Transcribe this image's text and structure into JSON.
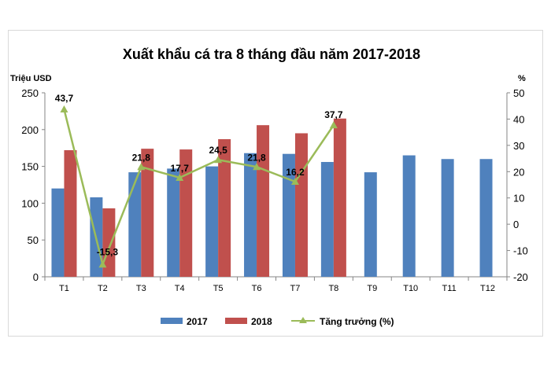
{
  "chart_data": {
    "type": "bar",
    "title": "Xuất khẩu cá tra 8 tháng đầu năm 2017-2018",
    "ylabel": "Triệu USD",
    "y2label": "%",
    "categories": [
      "T1",
      "T2",
      "T3",
      "T4",
      "T5",
      "T6",
      "T7",
      "T8",
      "T9",
      "T10",
      "T11",
      "T12"
    ],
    "ylim": [
      0,
      250
    ],
    "yticks": [
      0,
      50,
      100,
      150,
      200,
      250
    ],
    "y2lim": [
      -20,
      50
    ],
    "y2ticks": [
      -20,
      -10,
      0,
      10,
      20,
      30,
      40,
      50
    ],
    "series": [
      {
        "name": "2017",
        "type": "bar",
        "color": "#4f81bd",
        "values": [
          120,
          108,
          142,
          147,
          150,
          168,
          167,
          156,
          142,
          165,
          160,
          160
        ]
      },
      {
        "name": "2018",
        "type": "bar",
        "color": "#c0504d",
        "values": [
          172,
          93,
          174,
          173,
          187,
          206,
          195,
          215,
          null,
          null,
          null,
          null
        ]
      },
      {
        "name": "Tăng trưởng (%)",
        "type": "line",
        "axis": "right",
        "color": "#9bbb59",
        "values": [
          43.7,
          -15.3,
          21.8,
          17.7,
          24.5,
          21.8,
          16.2,
          37.7,
          null,
          null,
          null,
          null
        ],
        "labels": [
          "43,7",
          "-15,3",
          "21,8",
          "17,7",
          "24,5",
          "21,8",
          "16,2",
          "37,7"
        ]
      }
    ],
    "legend_position": "bottom",
    "grid": false
  },
  "legend": {
    "s2017": "2017",
    "s2018": "2018",
    "growth": "Tăng trưởng (%)"
  }
}
